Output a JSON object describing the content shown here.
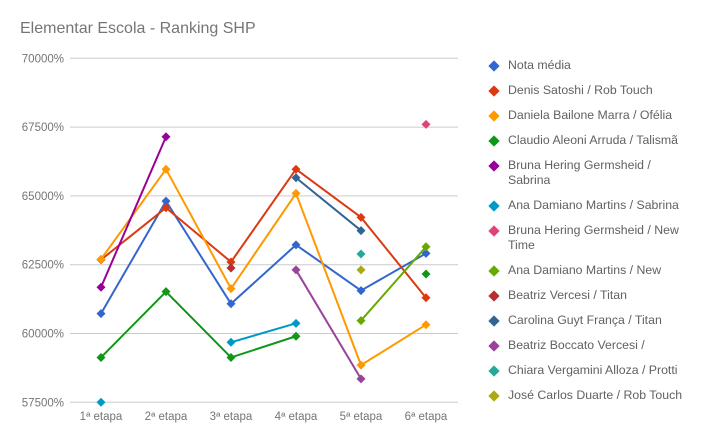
{
  "chart_data": {
    "type": "line",
    "title": "Elementar Escola - Ranking SHP",
    "xlabel": "",
    "ylabel": "",
    "categories": [
      "1ª etapa",
      "2ª etapa",
      "3ª etapa",
      "4ª etapa",
      "5ª etapa",
      "6ª etapa"
    ],
    "ylim": [
      57500,
      70000
    ],
    "yticks": [
      57500,
      60000,
      62500,
      65000,
      67500,
      70000
    ],
    "ytick_labels": [
      "57500%",
      "60000%",
      "62500%",
      "65000%",
      "67500%",
      "70000%"
    ],
    "grid": true,
    "legend_position": "right",
    "marker": "diamond",
    "series": [
      {
        "name": "Nota média",
        "color": "#3366cc",
        "values": [
          60720,
          64810,
          61080,
          63220,
          61560,
          62910
        ]
      },
      {
        "name": "Denis Satoshi / Rob Touch",
        "color": "#dc3912",
        "values": [
          62680,
          64570,
          62600,
          65970,
          64220,
          61300
        ]
      },
      {
        "name": "Daniela Bailone Marra / Ofélia",
        "color": "#ff9900",
        "values": [
          62700,
          65970,
          61630,
          65090,
          58850,
          60320
        ]
      },
      {
        "name": "Claudio Aleoni Arruda / Talismã",
        "color": "#109618",
        "values": [
          59130,
          61520,
          59130,
          59900,
          null,
          62160
        ]
      },
      {
        "name": "Bruna Hering Germsheid / Sabrina",
        "color": "#990099",
        "values": [
          61680,
          67150,
          null,
          null,
          null,
          null
        ]
      },
      {
        "name": "Ana Damiano Martins / Sabrina",
        "color": "#0099c6",
        "values": [
          57500,
          null,
          59680,
          60370,
          null,
          null
        ]
      },
      {
        "name": "Bruna Hering Germsheid / New Time",
        "color": "#dd4477",
        "values": [
          null,
          null,
          null,
          null,
          null,
          67600
        ]
      },
      {
        "name": "Ana Damiano Martins / New",
        "color": "#66aa00",
        "values": [
          null,
          null,
          null,
          null,
          60470,
          63150
        ]
      },
      {
        "name": "Beatriz Vercesi / Titan",
        "color": "#b82e2e",
        "values": [
          null,
          null,
          62380,
          null,
          null,
          null
        ]
      },
      {
        "name": "Carolina Guyt França / Titan",
        "color": "#316395",
        "values": [
          null,
          null,
          null,
          65660,
          63740,
          null
        ]
      },
      {
        "name": "Beatriz Boccato Vercesi /",
        "color": "#994499",
        "values": [
          null,
          null,
          null,
          62310,
          58350,
          null
        ]
      },
      {
        "name": "Chiara Vergamini Alloza / Protti",
        "color": "#22aa99",
        "values": [
          null,
          null,
          null,
          null,
          62890,
          null
        ]
      },
      {
        "name": "José Carlos Duarte / Rob Touch",
        "color": "#aaaa11",
        "values": [
          null,
          null,
          null,
          null,
          62310,
          null
        ]
      }
    ]
  }
}
